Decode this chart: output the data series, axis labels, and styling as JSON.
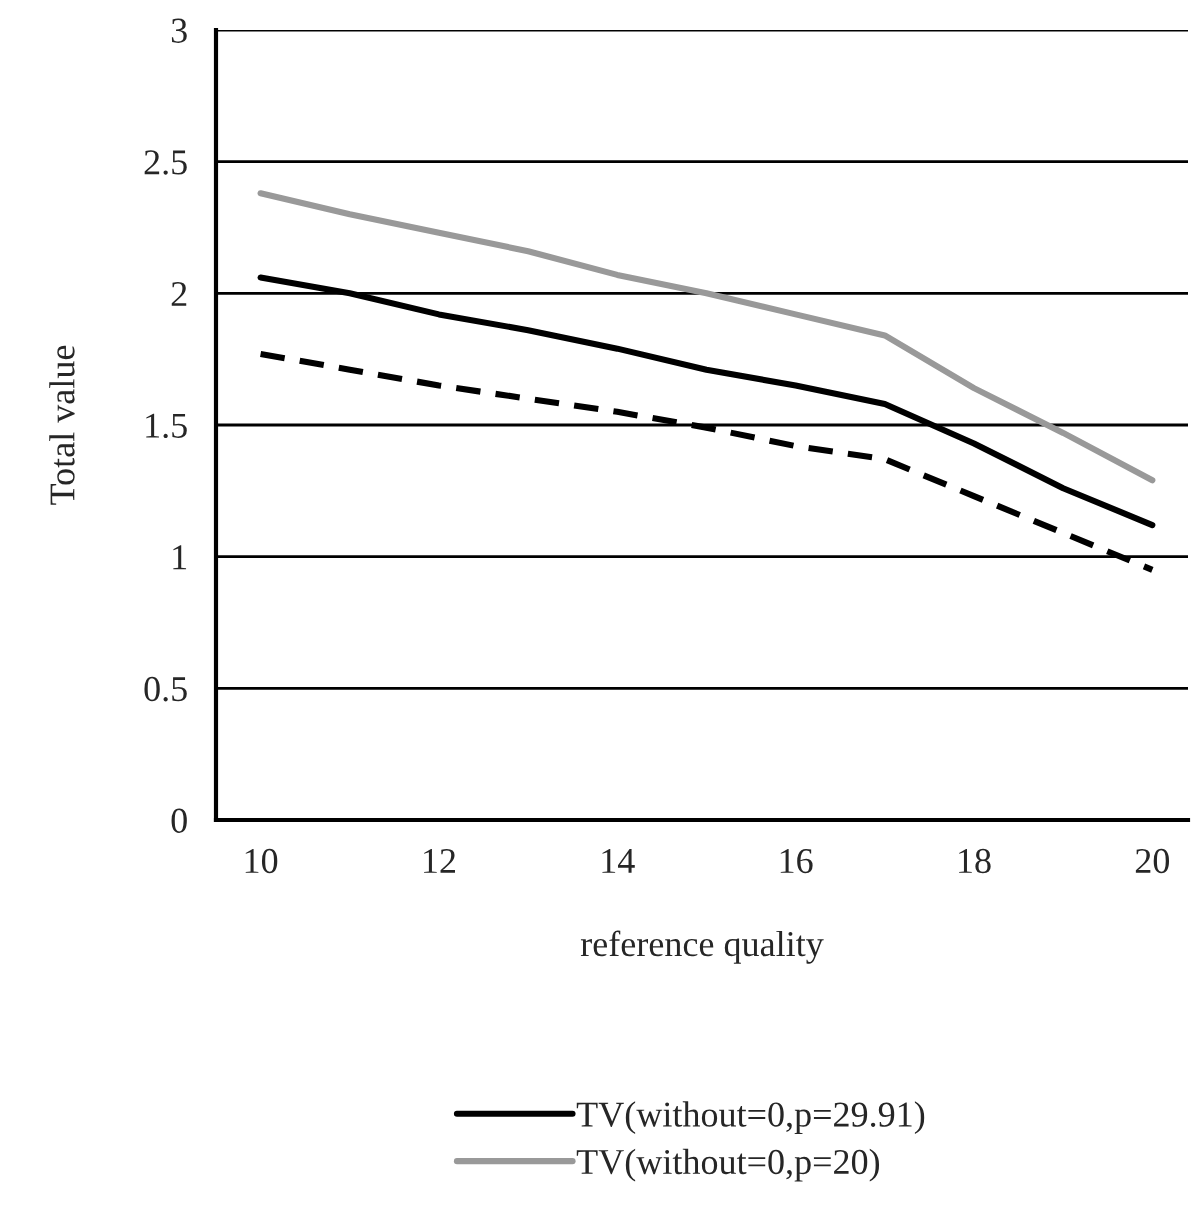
{
  "chart_data": {
    "type": "line",
    "xlabel": "reference quality",
    "ylabel": "Total value",
    "x": [
      10,
      11,
      12,
      13,
      14,
      15,
      16,
      17,
      18,
      19,
      20
    ],
    "series": [
      {
        "name": "TV(without=0,p=29.91)",
        "color": "#000000",
        "values": [
          2.06,
          2.0,
          1.92,
          1.86,
          1.79,
          1.71,
          1.65,
          1.58,
          1.43,
          1.26,
          1.12
        ]
      },
      {
        "name": "TV(without=0,p=20)",
        "color": "#999999",
        "values": [
          2.38,
          2.3,
          2.23,
          2.16,
          2.07,
          2.0,
          1.92,
          1.84,
          1.64,
          1.47,
          1.29
        ]
      },
      {
        "color": "#000000",
        "line_style": "dashed",
        "values": [
          1.77,
          1.71,
          1.65,
          1.6,
          1.55,
          1.49,
          1.42,
          1.37,
          1.23,
          1.09,
          0.95
        ]
      }
    ],
    "xlim": [
      9.5,
      20.4
    ],
    "xticks": [
      10,
      12,
      14,
      16,
      18,
      20
    ],
    "ylim": [
      0,
      3
    ],
    "yticks": [
      0,
      0.5,
      1,
      1.5,
      2,
      2.5,
      3
    ],
    "grid": "y",
    "legend": "bottom",
    "line_style": "solid",
    "marker": "none"
  }
}
